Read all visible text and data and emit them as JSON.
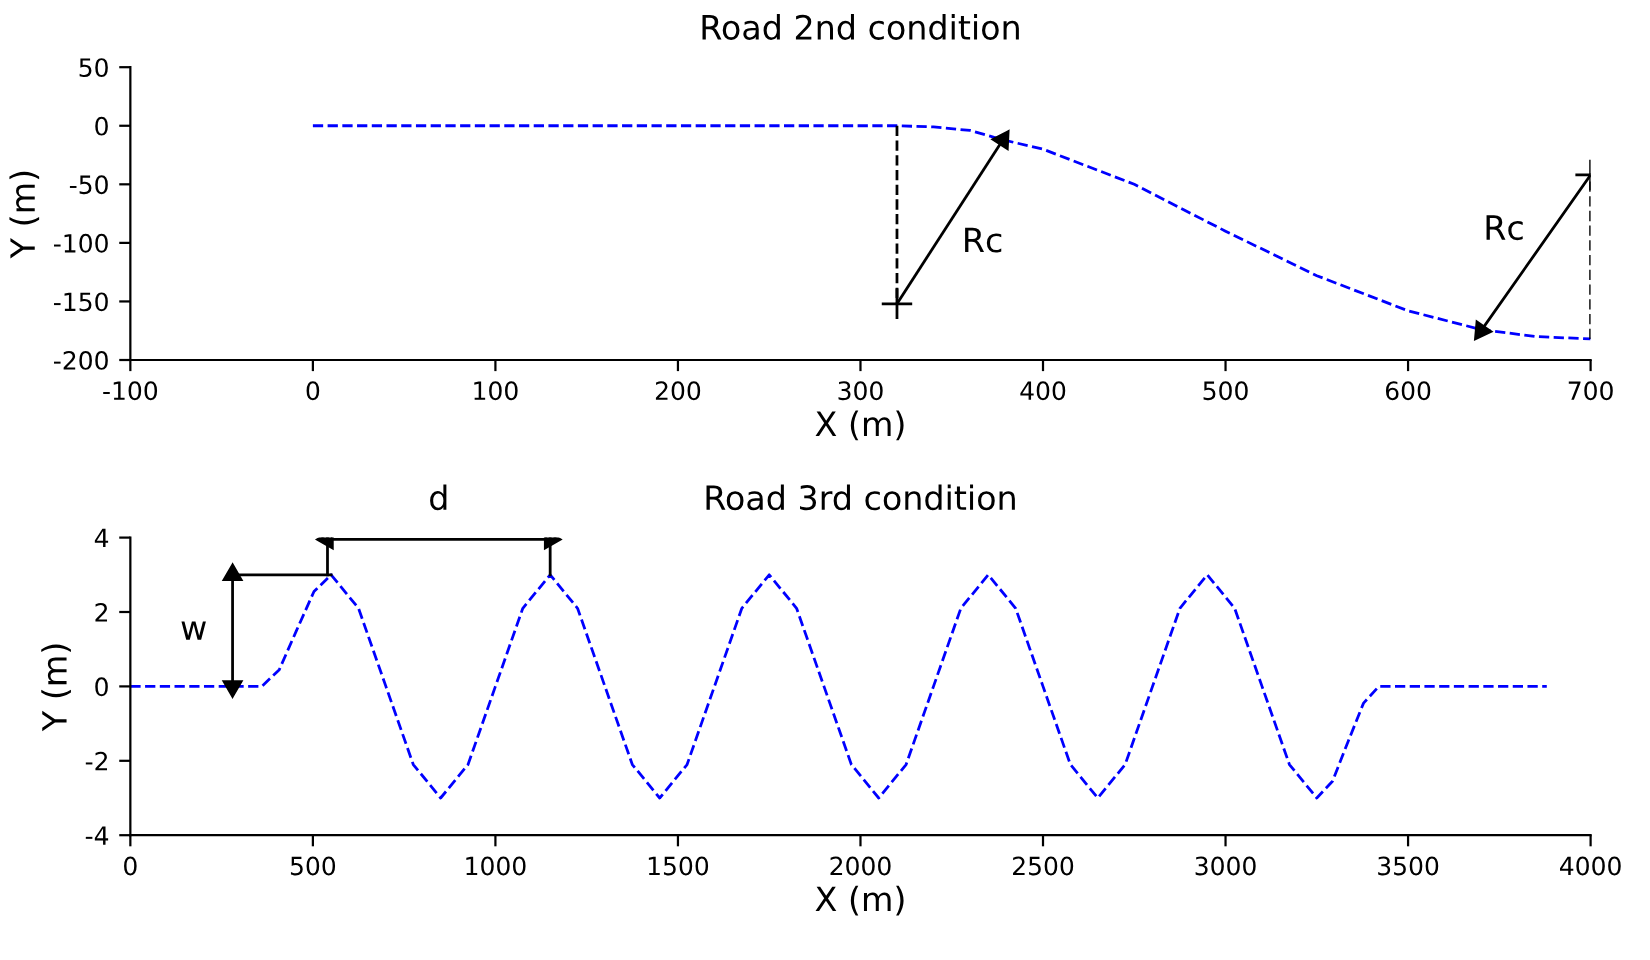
{
  "chart_data": [
    {
      "type": "line",
      "title": "Road 2nd condition",
      "xlabel": "X (m)",
      "ylabel": "Y (m)",
      "xlim": [
        -100,
        700
      ],
      "xticks": [
        -100,
        0,
        100,
        200,
        300,
        400,
        500,
        600,
        700
      ],
      "ylim": [
        -200,
        50
      ],
      "yticks": [
        -200,
        -150,
        -100,
        -50,
        0,
        50
      ],
      "series": [
        {
          "color": "#0000ff",
          "line_style": "dashed",
          "x": [
            0,
            320,
            340,
            360,
            378,
            400,
            450,
            500,
            550,
            600,
            640,
            670,
            700
          ],
          "values": [
            0,
            0,
            -1,
            -4,
            -12,
            -20,
            -50,
            -90,
            -128,
            -158,
            -174,
            -180,
            -182
          ]
        },
        {
          "color": "#000000",
          "line_style": "dashed",
          "x": [
            320,
            320
          ],
          "values": [
            0,
            -152
          ]
        },
        {
          "color": "#000000",
          "line_style": "dashed",
          "x": [
            700,
            700
          ],
          "values": [
            -182,
            -42
          ]
        },
        {
          "type": "scatter",
          "color": "#000000",
          "marker": "cross",
          "x": [
            320,
            700
          ],
          "values": [
            -152,
            -42
          ]
        },
        {
          "color": "#000000",
          "line_style": "solid",
          "marker": "triangle",
          "x": [
            320,
            378
          ],
          "values": [
            -152,
            -12
          ]
        },
        {
          "color": "#000000",
          "line_style": "solid",
          "marker": "triangle",
          "x": [
            700,
            640
          ],
          "values": [
            -42,
            -175
          ]
        }
      ],
      "annotations": [
        {
          "text": "Rc",
          "x": 349,
          "y": -82
        },
        {
          "text": "Rc",
          "x": 670,
          "y": -108.5
        }
      ]
    },
    {
      "type": "line",
      "title": "Road 3rd condition",
      "xlabel": "X (m)",
      "ylabel": "Y (m)",
      "xlim": [
        0,
        4000
      ],
      "xticks": [
        0,
        500,
        1000,
        1500,
        2000,
        2500,
        3000,
        3500,
        4000
      ],
      "ylim": [
        -4,
        4
      ],
      "yticks": [
        -4,
        -2,
        0,
        2,
        4
      ],
      "series": [
        {
          "color": "#0000ff",
          "line_style": "dashed",
          "x": [
            0,
            360,
            408,
            455,
            503,
            550,
            625,
            700,
            775,
            850,
            925,
            1000,
            1075,
            1150,
            1225,
            1300,
            1375,
            1450,
            1525,
            1600,
            1675,
            1750,
            1825,
            1900,
            1975,
            2050,
            2125,
            2200,
            2275,
            2350,
            2425,
            2500,
            2575,
            2650,
            2725,
            2800,
            2875,
            2950,
            3025,
            3100,
            3175,
            3250,
            3293,
            3335,
            3378,
            3420,
            3880
          ],
          "values": [
            0,
            0,
            0.45,
            1.5,
            2.55,
            3,
            2.1,
            0,
            -2.1,
            -3,
            -2.1,
            0,
            2.1,
            3,
            2.1,
            0,
            -2.1,
            -3,
            -2.1,
            0,
            2.1,
            3,
            2.1,
            0,
            -2.1,
            -3,
            -2.1,
            0,
            2.1,
            3,
            2.1,
            0,
            -2.1,
            -3,
            -2.1,
            0,
            2.1,
            3,
            2.1,
            0,
            -2.1,
            -3,
            -2.55,
            -1.5,
            -0.45,
            0,
            0
          ]
        },
        {
          "color": "#000000",
          "line_style": "solid",
          "x": [
            280,
            550
          ],
          "values": [
            3,
            3
          ]
        },
        {
          "color": "#000000",
          "line_style": "solid",
          "x": [
            540,
            540
          ],
          "values": [
            3,
            4
          ]
        },
        {
          "color": "#000000",
          "line_style": "solid",
          "x": [
            1150,
            1150
          ],
          "values": [
            3,
            4
          ]
        },
        {
          "color": "#000000",
          "line_style": "solid",
          "marker": "triangle",
          "x": [
            1150,
            540
          ],
          "values": [
            3.95,
            3.95
          ]
        },
        {
          "color": "#000000",
          "line_style": "solid",
          "marker": "triangle",
          "x": [
            280,
            280
          ],
          "values": [
            3,
            0
          ]
        }
      ],
      "annotations": [
        {
          "text": "d",
          "x": 845,
          "y": 3.95
        },
        {
          "text": "w",
          "x": 280,
          "y": 1.5
        }
      ]
    }
  ]
}
